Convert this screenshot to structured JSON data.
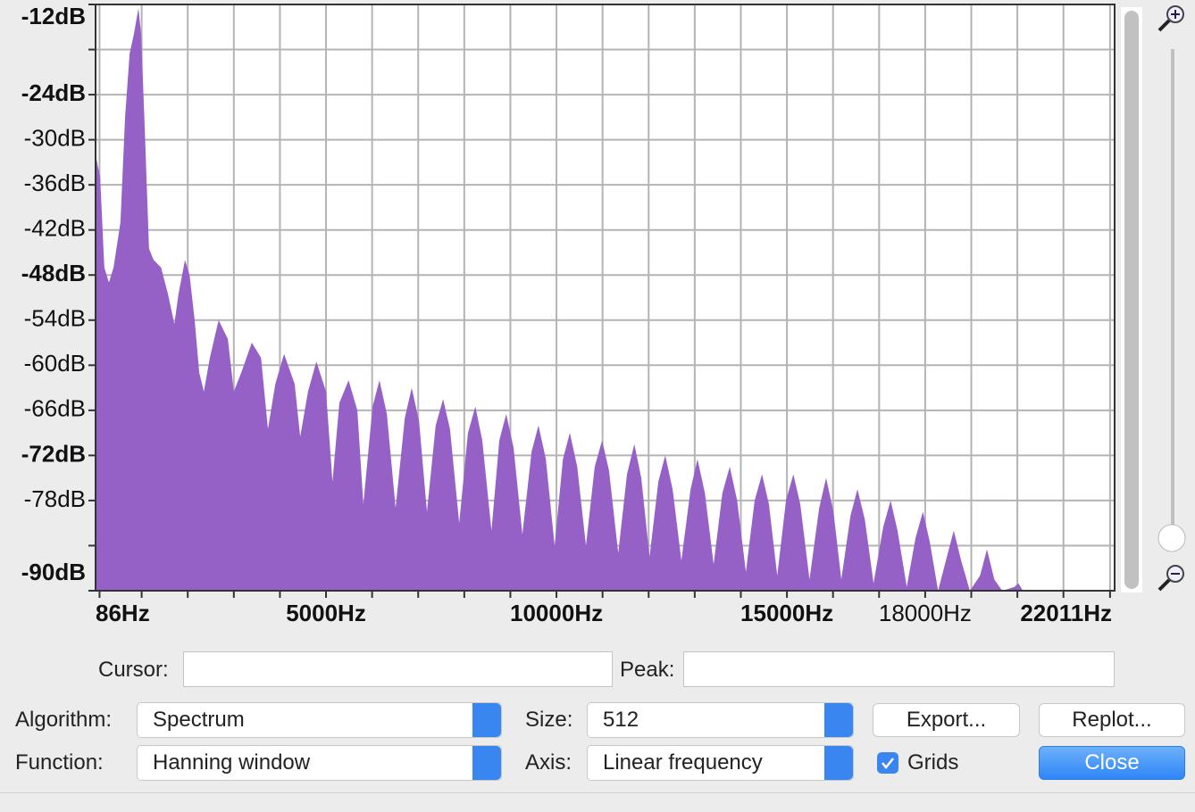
{
  "chart_data": {
    "type": "area",
    "color": "#9561c7",
    "grid": true,
    "xlim": [
      0,
      22110
    ],
    "ylim": [
      -90,
      -12
    ],
    "xticks": [
      {
        "value": 86,
        "label": "86Hz",
        "bold": true
      },
      {
        "value": 1000,
        "label": null
      },
      {
        "value": 2000,
        "label": null
      },
      {
        "value": 3000,
        "label": null
      },
      {
        "value": 4000,
        "label": null
      },
      {
        "value": 5000,
        "label": "5000Hz",
        "bold": true
      },
      {
        "value": 6000,
        "label": null
      },
      {
        "value": 7000,
        "label": null
      },
      {
        "value": 8000,
        "label": null
      },
      {
        "value": 9000,
        "label": null
      },
      {
        "value": 10000,
        "label": "10000Hz",
        "bold": true
      },
      {
        "value": 11000,
        "label": null
      },
      {
        "value": 12000,
        "label": null
      },
      {
        "value": 13000,
        "label": null
      },
      {
        "value": 14000,
        "label": null
      },
      {
        "value": 15000,
        "label": "15000Hz",
        "bold": true
      },
      {
        "value": 16000,
        "label": null
      },
      {
        "value": 17000,
        "label": null
      },
      {
        "value": 18000,
        "label": "18000Hz",
        "bold": false
      },
      {
        "value": 19000,
        "label": null
      },
      {
        "value": 20000,
        "label": null
      },
      {
        "value": 21000,
        "label": null
      },
      {
        "value": 22011,
        "label": "22011Hz",
        "bold": true
      }
    ],
    "yticks": [
      {
        "value": -12,
        "label": "-12dB",
        "bold": true
      },
      {
        "value": -18,
        "label": null
      },
      {
        "value": -24,
        "label": "-24dB",
        "bold": true
      },
      {
        "value": -30,
        "label": "-30dB",
        "bold": false
      },
      {
        "value": -36,
        "label": "-36dB",
        "bold": false
      },
      {
        "value": -42,
        "label": "-42dB",
        "bold": false
      },
      {
        "value": -48,
        "label": "-48dB",
        "bold": true
      },
      {
        "value": -54,
        "label": "-54dB",
        "bold": false
      },
      {
        "value": -60,
        "label": "-60dB",
        "bold": false
      },
      {
        "value": -66,
        "label": "-66dB",
        "bold": false
      },
      {
        "value": -72,
        "label": "-72dB",
        "bold": true
      },
      {
        "value": -78,
        "label": "-78dB",
        "bold": false
      },
      {
        "value": -84,
        "label": null
      },
      {
        "value": -90,
        "label": "-90dB",
        "bold": true
      }
    ],
    "x": [
      0,
      100,
      190,
      290,
      390,
      540,
      640,
      740,
      830,
      930,
      990,
      1070,
      1160,
      1260,
      1420,
      1570,
      1710,
      1800,
      1940,
      2040,
      2150,
      2250,
      2350,
      2480,
      2670,
      2870,
      3000,
      3160,
      3390,
      3590,
      3740,
      3900,
      4090,
      4320,
      4440,
      4610,
      4790,
      5000,
      5140,
      5290,
      5490,
      5680,
      5810,
      6010,
      6160,
      6320,
      6510,
      6710,
      6860,
      7020,
      7190,
      7380,
      7540,
      7690,
      7890,
      8080,
      8240,
      8390,
      8590,
      8760,
      8910,
      9070,
      9260,
      9460,
      9610,
      9770,
      9960,
      10140,
      10290,
      10450,
      10640,
      10830,
      10990,
      11140,
      11340,
      11530,
      11690,
      11840,
      12020,
      12210,
      12360,
      12520,
      12710,
      12910,
      13060,
      13220,
      13410,
      13600,
      13760,
      13920,
      14110,
      14300,
      14460,
      14610,
      14790,
      14980,
      15140,
      15290,
      15490,
      15700,
      15850,
      16010,
      16180,
      16380,
      16530,
      16690,
      16880,
      17090,
      17250,
      17400,
      17600,
      17790,
      17950,
      18100,
      18280,
      18470,
      18620,
      18780,
      18970,
      19190,
      19340,
      19500,
      19670,
      19940,
      20020,
      20120,
      22010
    ],
    "values": [
      -32,
      -35,
      -47,
      -49,
      -47,
      -41,
      -27,
      -18.5,
      -16,
      -12.5,
      -16,
      -29,
      -44.5,
      -46,
      -47,
      -50.5,
      -54.5,
      -50.5,
      -46,
      -48,
      -54,
      -61,
      -63.5,
      -59,
      -54,
      -56.5,
      -63.5,
      -61,
      -57,
      -59,
      -68.5,
      -62.5,
      -58.5,
      -62.5,
      -69.5,
      -63.5,
      -59.5,
      -63.5,
      -75.5,
      -65,
      -62,
      -66,
      -78.5,
      -65.5,
      -62,
      -66.5,
      -79,
      -67,
      -63,
      -67.5,
      -79.5,
      -68,
      -64.5,
      -68.5,
      -81,
      -69,
      -65.5,
      -70,
      -82,
      -70,
      -66.5,
      -71,
      -82.5,
      -71.5,
      -68,
      -72.5,
      -84,
      -72.5,
      -69,
      -73.5,
      -84,
      -73.5,
      -70,
      -74,
      -85,
      -74.5,
      -70.5,
      -75,
      -85.5,
      -75.5,
      -72,
      -76.5,
      -86,
      -76.5,
      -72.5,
      -77,
      -86.5,
      -77,
      -73.5,
      -78,
      -87.5,
      -78,
      -74.5,
      -78.5,
      -88,
      -78,
      -74.5,
      -78.5,
      -88.5,
      -79,
      -75,
      -79.5,
      -88.5,
      -80,
      -76.5,
      -80.5,
      -89,
      -81.5,
      -78,
      -82,
      -89.5,
      -83,
      -79.5,
      -83.5,
      -90,
      -85.5,
      -82,
      -86,
      -90,
      -88,
      -84.5,
      -88.5,
      -90,
      -89.5,
      -89,
      -90,
      -90
    ]
  },
  "controls": {
    "cursor_label": "Cursor:",
    "peak_label": "Peak:",
    "algorithm_label": "Algorithm:",
    "algorithm": "Spectrum",
    "size_label": "Size:",
    "size": 512,
    "export_button": "Export...",
    "replot_button": "Replot...",
    "function_label": "Function:",
    "function": "Hanning window",
    "axis_label": "Axis:",
    "axis": "Linear frequency",
    "grids_label": "Grids",
    "grids_checked": true,
    "close_button": "Close"
  }
}
